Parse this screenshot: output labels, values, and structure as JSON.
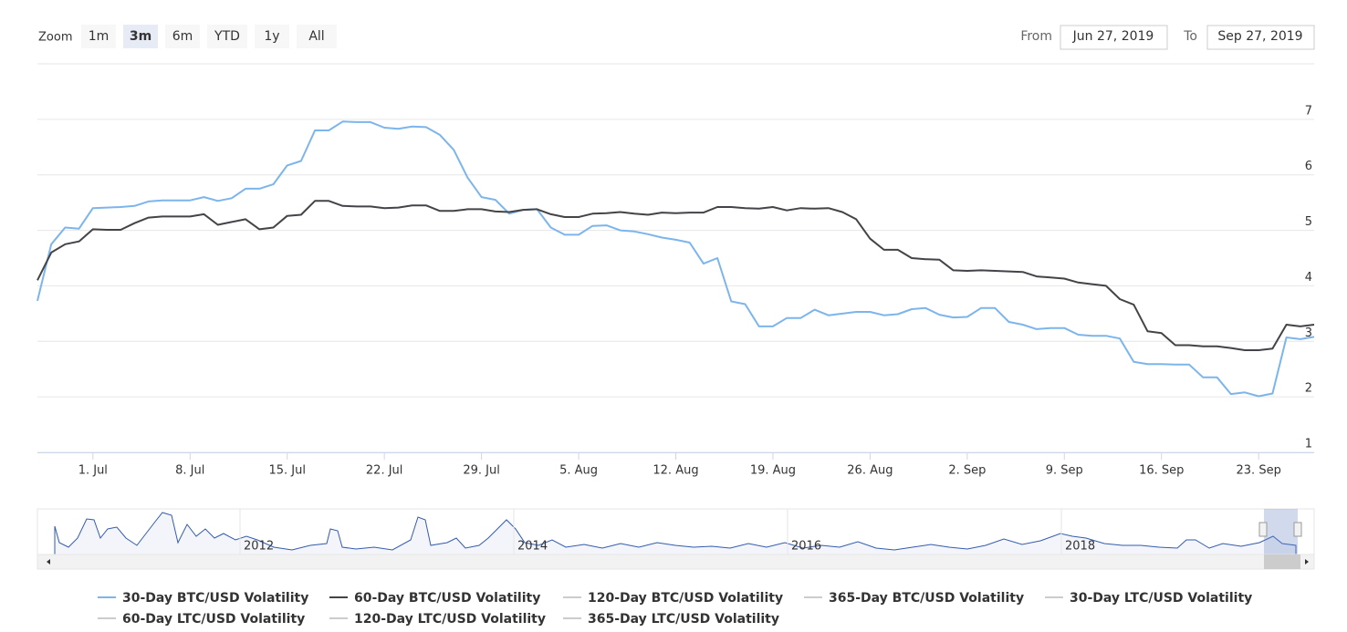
{
  "range_selector": {
    "zoom_label": "Zoom",
    "buttons": [
      "1m",
      "3m",
      "6m",
      "YTD",
      "1y",
      "All"
    ],
    "selected": "3m",
    "from_label": "From",
    "from": "Jun 27, 2019",
    "to_label": "To",
    "to": "Sep 27, 2019"
  },
  "chart_data": {
    "type": "line",
    "x": [
      "2019-06-27",
      "2019-06-28",
      "2019-06-29",
      "2019-06-30",
      "2019-07-01",
      "2019-07-02",
      "2019-07-03",
      "2019-07-04",
      "2019-07-05",
      "2019-07-06",
      "2019-07-07",
      "2019-07-08",
      "2019-07-09",
      "2019-07-10",
      "2019-07-11",
      "2019-07-12",
      "2019-07-13",
      "2019-07-14",
      "2019-07-15",
      "2019-07-16",
      "2019-07-17",
      "2019-07-18",
      "2019-07-19",
      "2019-07-20",
      "2019-07-21",
      "2019-07-22",
      "2019-07-23",
      "2019-07-24",
      "2019-07-25",
      "2019-07-26",
      "2019-07-27",
      "2019-07-28",
      "2019-07-29",
      "2019-07-30",
      "2019-07-31",
      "2019-08-01",
      "2019-08-02",
      "2019-08-03",
      "2019-08-04",
      "2019-08-05",
      "2019-08-06",
      "2019-08-07",
      "2019-08-08",
      "2019-08-09",
      "2019-08-10",
      "2019-08-11",
      "2019-08-12",
      "2019-08-13",
      "2019-08-14",
      "2019-08-15",
      "2019-08-16",
      "2019-08-17",
      "2019-08-18",
      "2019-08-19",
      "2019-08-20",
      "2019-08-21",
      "2019-08-22",
      "2019-08-23",
      "2019-08-24",
      "2019-08-25",
      "2019-08-26",
      "2019-08-27",
      "2019-08-28",
      "2019-08-29",
      "2019-08-30",
      "2019-08-31",
      "2019-09-01",
      "2019-09-02",
      "2019-09-03",
      "2019-09-04",
      "2019-09-05",
      "2019-09-06",
      "2019-09-07",
      "2019-09-08",
      "2019-09-09",
      "2019-09-10",
      "2019-09-11",
      "2019-09-12",
      "2019-09-13",
      "2019-09-14",
      "2019-09-15",
      "2019-09-16",
      "2019-09-17",
      "2019-09-18",
      "2019-09-19",
      "2019-09-20",
      "2019-09-21",
      "2019-09-22",
      "2019-09-23",
      "2019-09-24",
      "2019-09-25",
      "2019-09-26",
      "2019-09-27"
    ],
    "series": [
      {
        "name": "30-Day BTC/USD Volatility",
        "color": "#7cb5ec",
        "values": [
          3.73,
          4.75,
          5.05,
          5.03,
          5.4,
          5.41,
          5.42,
          5.44,
          5.52,
          5.54,
          5.54,
          5.54,
          5.6,
          5.53,
          5.58,
          5.75,
          5.75,
          5.83,
          6.17,
          6.25,
          6.8,
          6.8,
          6.96,
          6.95,
          6.95,
          6.85,
          6.83,
          6.87,
          6.86,
          6.72,
          6.45,
          5.95,
          5.6,
          5.55,
          5.3,
          5.37,
          5.38,
          5.05,
          4.92,
          4.92,
          5.08,
          5.09,
          5.0,
          4.98,
          4.93,
          4.87,
          4.83,
          4.78,
          4.4,
          4.5,
          3.72,
          3.67,
          3.27,
          3.27,
          3.42,
          3.42,
          3.57,
          3.47,
          3.5,
          3.53,
          3.53,
          3.47,
          3.49,
          3.58,
          3.6,
          3.48,
          3.43,
          3.44,
          3.6,
          3.6,
          3.35,
          3.3,
          3.22,
          3.24,
          3.24,
          3.12,
          3.1,
          3.1,
          3.05,
          2.63,
          2.59,
          2.59,
          2.58,
          2.58,
          2.35,
          2.35,
          2.05,
          2.08,
          2.01,
          2.06,
          3.07,
          3.04,
          3.08
        ]
      },
      {
        "name": "60-Day BTC/USD Volatility",
        "color": "#434348",
        "values": [
          4.1,
          4.6,
          4.75,
          4.8,
          5.02,
          5.01,
          5.01,
          5.13,
          5.23,
          5.25,
          5.25,
          5.25,
          5.29,
          5.1,
          5.15,
          5.2,
          5.02,
          5.05,
          5.26,
          5.28,
          5.53,
          5.53,
          5.44,
          5.43,
          5.43,
          5.4,
          5.41,
          5.45,
          5.45,
          5.35,
          5.35,
          5.38,
          5.38,
          5.34,
          5.33,
          5.37,
          5.38,
          5.29,
          5.24,
          5.24,
          5.3,
          5.31,
          5.33,
          5.3,
          5.28,
          5.32,
          5.31,
          5.32,
          5.32,
          5.42,
          5.42,
          5.4,
          5.39,
          5.42,
          5.36,
          5.4,
          5.39,
          5.4,
          5.33,
          5.2,
          4.85,
          4.65,
          4.65,
          4.5,
          4.48,
          4.47,
          4.28,
          4.27,
          4.28,
          4.27,
          4.26,
          4.25,
          4.17,
          4.15,
          4.13,
          4.06,
          4.03,
          4.0,
          3.76,
          3.66,
          3.18,
          3.15,
          2.93,
          2.93,
          2.91,
          2.91,
          2.88,
          2.84,
          2.84,
          2.87,
          3.3,
          3.27,
          3.3
        ]
      }
    ],
    "hidden_series": [
      "120-Day BTC/USD Volatility",
      "365-Day BTC/USD Volatility",
      "30-Day LTC/USD Volatility",
      "60-Day LTC/USD Volatility",
      "120-Day LTC/USD Volatility",
      "365-Day LTC/USD Volatility"
    ],
    "hidden_color": "#cccccc",
    "xlim": [
      "2019-06-27",
      "2019-09-27"
    ],
    "xticks": [
      {
        "value": "2019-07-01",
        "label": "1. Jul"
      },
      {
        "value": "2019-07-08",
        "label": "8. Jul"
      },
      {
        "value": "2019-07-15",
        "label": "15. Jul"
      },
      {
        "value": "2019-07-22",
        "label": "22. Jul"
      },
      {
        "value": "2019-07-29",
        "label": "29. Jul"
      },
      {
        "value": "2019-08-05",
        "label": "5. Aug"
      },
      {
        "value": "2019-08-12",
        "label": "12. Aug"
      },
      {
        "value": "2019-08-19",
        "label": "19. Aug"
      },
      {
        "value": "2019-08-26",
        "label": "26. Aug"
      },
      {
        "value": "2019-09-02",
        "label": "2. Sep"
      },
      {
        "value": "2019-09-09",
        "label": "9. Sep"
      },
      {
        "value": "2019-09-16",
        "label": "16. Sep"
      },
      {
        "value": "2019-09-23",
        "label": "23. Sep"
      }
    ],
    "ylim": [
      1,
      8
    ],
    "yticks": [
      1,
      2,
      3,
      4,
      5,
      6,
      7
    ],
    "grid": true
  },
  "navigator": {
    "labels": [
      "2012",
      "2014",
      "2016",
      "2018"
    ]
  }
}
